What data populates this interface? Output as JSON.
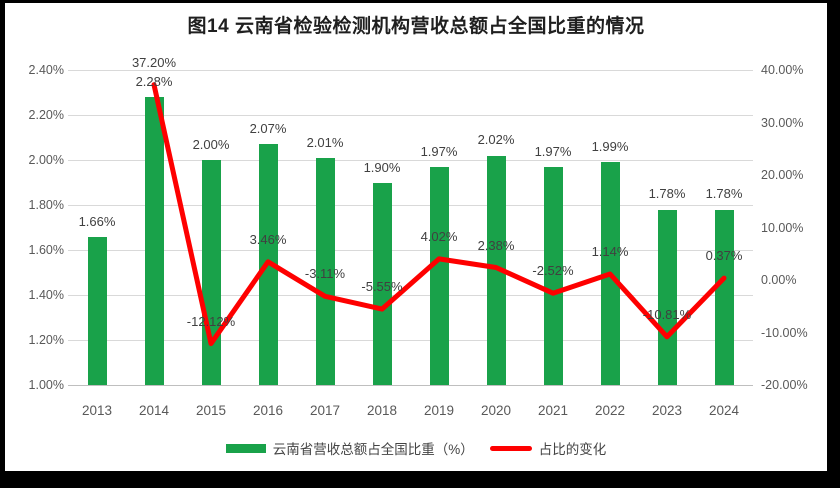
{
  "title": "图14 云南省检验检测机构营收总额占全国比重的情况",
  "colors": {
    "bar": "#19a24a",
    "line": "#fe0000",
    "grid": "#d9d9d9",
    "axis": "#bfbfbf",
    "tick_text": "#595959",
    "label_text": "#404040",
    "frame": "#000000",
    "background": "#ffffff"
  },
  "legend": {
    "bar_label": "云南省营收总额占全国比重（%）",
    "line_label": "占比的变化"
  },
  "chart_data": {
    "type": "bar",
    "subtype": "combo bar+line, dual axis",
    "title": "图14 云南省检验检测机构营收总额占全国比重的情况",
    "categories": [
      "2013",
      "2014",
      "2015",
      "2016",
      "2017",
      "2018",
      "2019",
      "2020",
      "2021",
      "2022",
      "2023",
      "2024"
    ],
    "series": [
      {
        "name": "云南省营收总额占全国比重（%）",
        "type": "bar",
        "axis": "left",
        "values": [
          1.66,
          2.28,
          2.0,
          2.07,
          2.01,
          1.9,
          1.97,
          2.02,
          1.97,
          1.99,
          1.78,
          1.78
        ],
        "labels": [
          "1.66%",
          "2.28%",
          "2.00%",
          "2.07%",
          "2.01%",
          "1.90%",
          "1.97%",
          "2.02%",
          "1.97%",
          "1.99%",
          "1.78%",
          "1.78%"
        ]
      },
      {
        "name": "占比的变化",
        "type": "line",
        "axis": "right",
        "values": [
          null,
          37.2,
          -12.12,
          3.46,
          -3.11,
          -5.55,
          4.02,
          2.38,
          -2.52,
          1.14,
          -10.81,
          0.37
        ],
        "labels": [
          "",
          "37.20%",
          "-12.12%",
          "3.46%",
          "-3.11%",
          "-5.55%",
          "4.02%",
          "2.38%",
          "-2.52%",
          "1.14%",
          "-10.81%",
          "0.37%"
        ]
      }
    ],
    "left_axis": {
      "min": 1.0,
      "max": 2.4,
      "step": 0.2,
      "tick_labels_top_to_bottom": [
        "2.40%",
        "2.20%",
        "2.00%",
        "1.80%",
        "1.60%",
        "1.40%",
        "1.20%",
        "1.00%"
      ]
    },
    "right_axis": {
      "min": -20.0,
      "max": 40.0,
      "step": 10.0,
      "tick_labels_top_to_bottom": [
        "40.00%",
        "30.00%",
        "20.00%",
        "10.00%",
        "0.00%",
        "-10.00%",
        "-20.00%"
      ]
    },
    "grid": "horizontal gridlines on, vertical off",
    "legend_position": "bottom"
  }
}
